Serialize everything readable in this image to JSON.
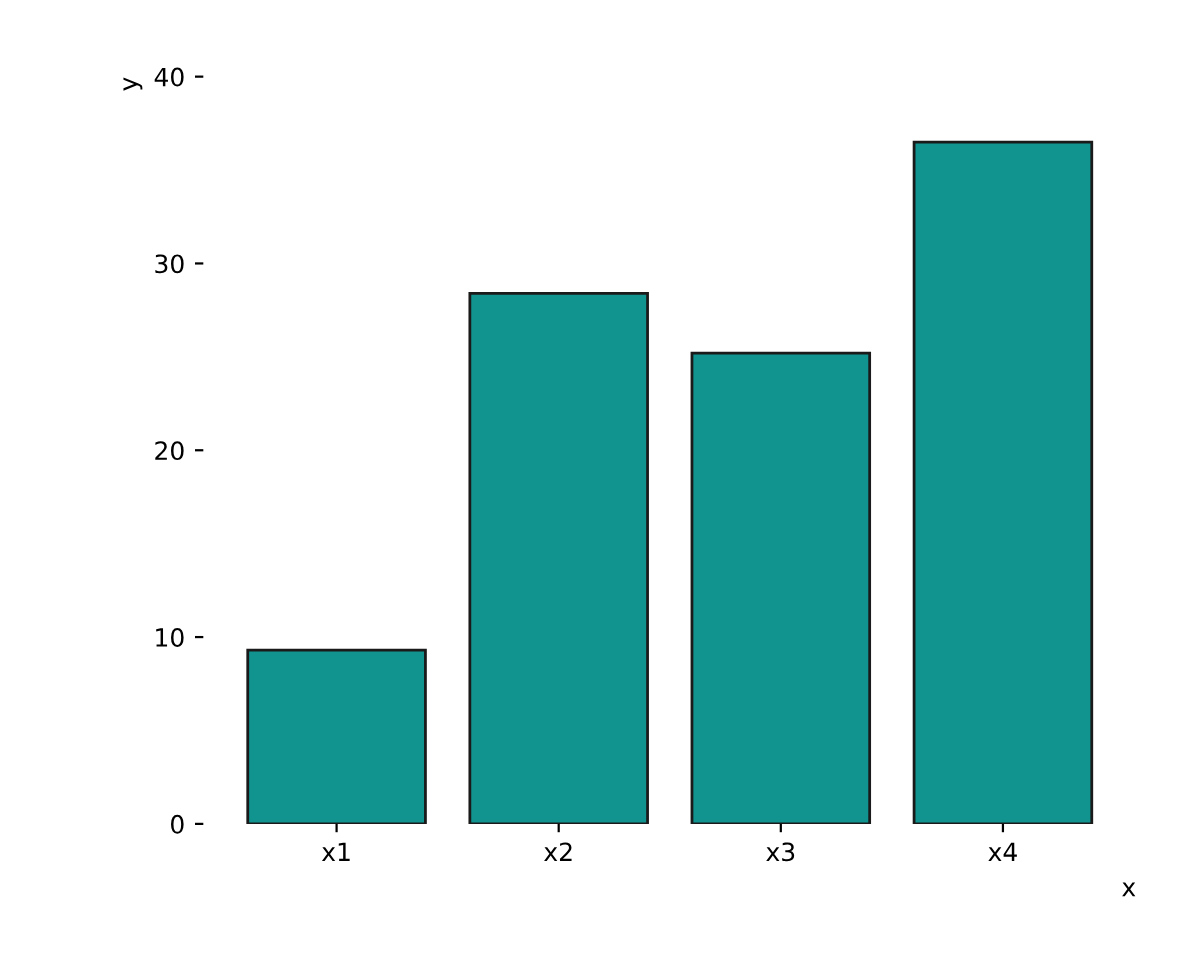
{
  "chart_data": {
    "type": "bar",
    "xlabel": "x",
    "ylabel": "y",
    "categories": [
      "x1",
      "x2",
      "x3",
      "x4"
    ],
    "values": [
      9.3,
      28.4,
      25.2,
      36.5
    ],
    "color": "#119490",
    "ylim": [
      0,
      40
    ],
    "yticks": [
      0,
      10,
      20,
      30,
      40
    ],
    "grid": false,
    "legend": false
  }
}
